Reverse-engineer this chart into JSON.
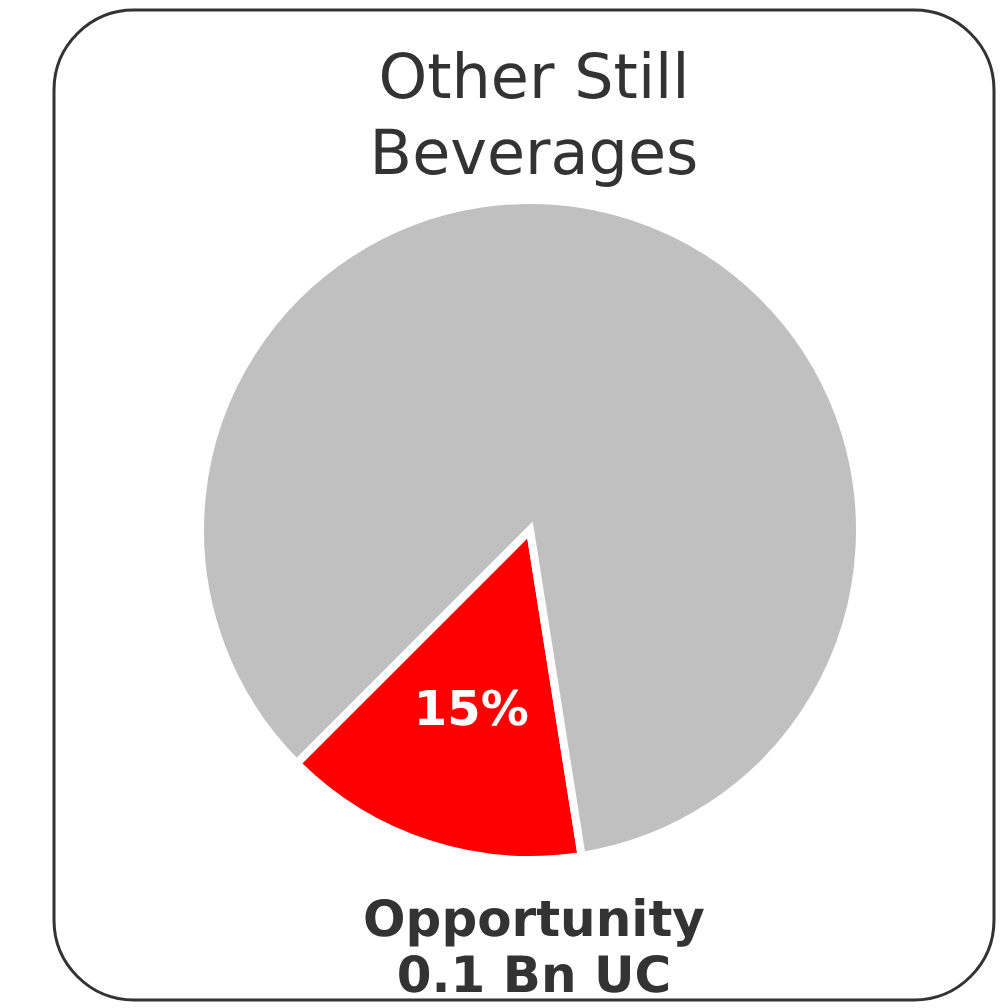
{
  "chart_data": {
    "type": "pie",
    "title": "Other Still Beverages",
    "categories": [
      null,
      null
    ],
    "values": [
      15,
      85
    ],
    "colors": [
      "#ff0000",
      "#c0c0c0"
    ],
    "value_labels": [
      "15%",
      null
    ],
    "annotations": [
      "Opportunity",
      "0.1 Bn UC"
    ],
    "legend": false
  }
}
